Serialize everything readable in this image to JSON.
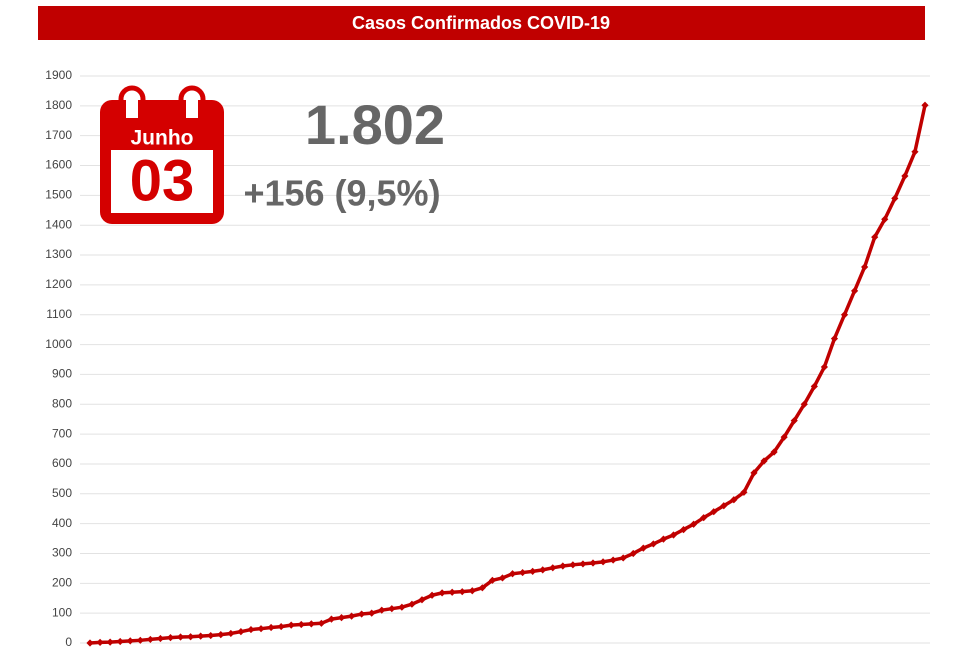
{
  "chart_data": {
    "type": "line",
    "title": "Casos Confirmados COVID-19",
    "annotations": {
      "month": "Junho",
      "day": "03",
      "total": "1.802",
      "change": "+156 (9,5%)"
    },
    "values": [
      0,
      2,
      3,
      5,
      7,
      9,
      12,
      15,
      18,
      20,
      21,
      23,
      25,
      28,
      32,
      38,
      45,
      48,
      52,
      55,
      60,
      62,
      64,
      66,
      80,
      85,
      90,
      97,
      100,
      110,
      115,
      120,
      130,
      145,
      160,
      168,
      170,
      172,
      175,
      185,
      210,
      218,
      232,
      236,
      240,
      245,
      252,
      258,
      262,
      265,
      268,
      272,
      278,
      285,
      300,
      318,
      332,
      348,
      362,
      380,
      398,
      420,
      440,
      460,
      480,
      505,
      570,
      610,
      640,
      690,
      745,
      800,
      860,
      925,
      1020,
      1100,
      1180,
      1260,
      1360,
      1420,
      1490,
      1565,
      1646,
      1802
    ],
    "color": "#c00000",
    "ylim": [
      0,
      1900
    ],
    "yticks": [
      0,
      100,
      200,
      300,
      400,
      500,
      600,
      700,
      800,
      900,
      1000,
      1100,
      1200,
      1300,
      1400,
      1500,
      1600,
      1700,
      1800,
      1900
    ],
    "grid": true
  }
}
